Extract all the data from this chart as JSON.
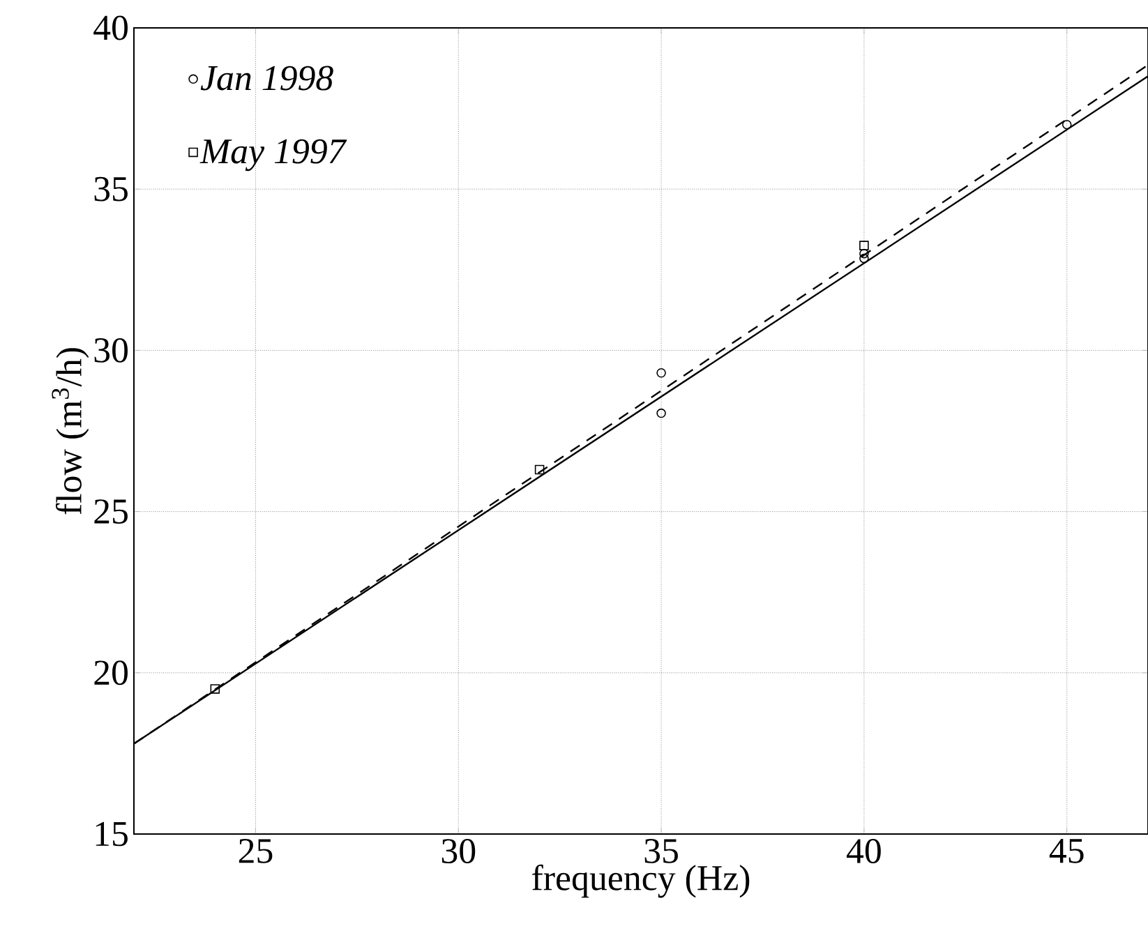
{
  "chart_data": {
    "type": "scatter",
    "xlabel": "frequency (Hz)",
    "ylabel": "flow (m$^{3}$/h)",
    "xlim": [
      22,
      47
    ],
    "ylim": [
      15,
      40
    ],
    "xticks": [
      25,
      30,
      35,
      40,
      45
    ],
    "yticks": [
      15,
      20,
      25,
      30,
      35,
      40
    ],
    "grid": true,
    "legend": "top left",
    "series": [
      {
        "name": "Jan 1998",
        "type": "scatter",
        "marker": "circle",
        "color": "#000000",
        "x": [
          35,
          35,
          40,
          40,
          45
        ],
        "values": [
          29.3,
          28.05,
          33.0,
          32.85,
          37.0
        ]
      },
      {
        "name": "May 1997",
        "type": "scatter",
        "marker": "square",
        "color": "#000000",
        "x": [
          24,
          32,
          40
        ],
        "values": [
          19.5,
          26.3,
          33.25
        ]
      },
      {
        "type": "line",
        "line_style": "solid",
        "color": "#000000",
        "x": [
          22,
          47
        ],
        "values": [
          17.8,
          38.5
        ]
      },
      {
        "type": "line",
        "line_style": "dashed",
        "color": "#000000",
        "x": [
          22,
          47
        ],
        "values": [
          17.8,
          38.85
        ]
      }
    ]
  }
}
